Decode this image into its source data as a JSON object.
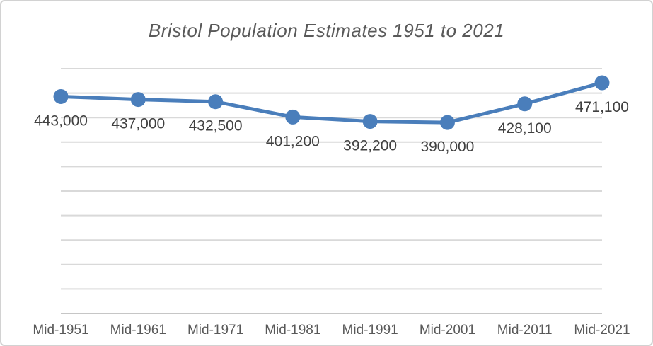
{
  "chart_data": {
    "type": "line",
    "title": "Bristol Population Estimates 1951 to 2021",
    "categories": [
      "Mid-1951",
      "Mid-1961",
      "Mid-1971",
      "Mid-1981",
      "Mid-1991",
      "Mid-2001",
      "Mid-2011",
      "Mid-2021"
    ],
    "values": [
      443000,
      437000,
      432500,
      401200,
      392200,
      390000,
      428100,
      471100
    ],
    "data_labels": [
      "443,000",
      "437,000",
      "432,500",
      "401,200",
      "392,200",
      "390,000",
      "428,100",
      "471,100"
    ],
    "xlabel": "",
    "ylabel": "",
    "ylim": [
      0,
      500000
    ],
    "gridline_step": 50000,
    "grid": true,
    "y_tick_labels_visible": false,
    "legend": "none",
    "data_label_position": "below"
  },
  "colors": {
    "line": "#4A7EBB",
    "marker": "#4A7EBB",
    "gridline": "#D9D9D9",
    "axis_line": "#C6C6C6",
    "title_text": "#595959",
    "axis_text": "#595959",
    "data_label_text": "#404040",
    "border": "#D2D2D2",
    "background": "#FFFFFF"
  }
}
